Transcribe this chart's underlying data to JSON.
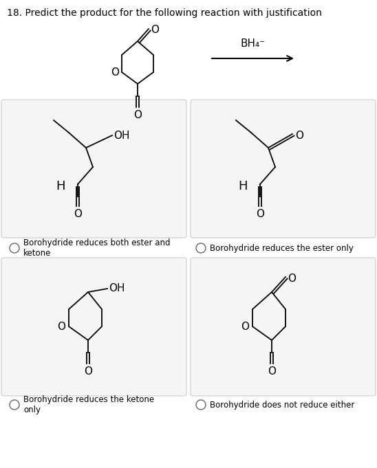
{
  "title": "18. Predict the product for the following reaction with justification",
  "reagent": "BH₄⁻",
  "bg_color": "#ffffff",
  "box_color": "#f5f5f5",
  "box_edge_color": "#cccccc",
  "text_color": "#000000",
  "choices": [
    "Borohydride reduces both ester and\nketone",
    "Borohydride reduces the ester only",
    "Borohydride reduces the ketone\nonly",
    "Borohydride does not reduce either"
  ],
  "title_fontsize": 10,
  "label_fontsize": 8.5,
  "struct_fontsize": 11
}
